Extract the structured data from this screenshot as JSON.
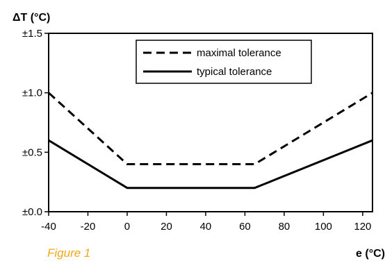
{
  "caption": "Figure 1",
  "colors": {
    "caption": "#f0a818",
    "line": "#000000",
    "background": "#ffffff"
  },
  "chart_data": {
    "type": "line",
    "title": "",
    "ylabel": "ΔT (°C)",
    "xlabel": "e (°C)",
    "xlim": [
      -40,
      125
    ],
    "ylim": [
      0,
      1.5
    ],
    "x_ticks": [
      -40,
      -20,
      0,
      20,
      40,
      60,
      80,
      100,
      120
    ],
    "y_ticks": [
      0,
      0.5,
      1.0,
      1.5
    ],
    "x_tick_labels": [
      "-40",
      "-20",
      "0",
      "20",
      "40",
      "60",
      "80",
      "100",
      "120"
    ],
    "y_tick_labels": [
      "±0.0",
      "±0.5",
      "±1.0",
      "±1.5"
    ],
    "grid": false,
    "legend_position": "top-center",
    "series": [
      {
        "name": "maximal tolerance",
        "style": "dashed",
        "x": [
          -40,
          0,
          65,
          125
        ],
        "y": [
          1.0,
          0.4,
          0.4,
          1.0
        ]
      },
      {
        "name": "typical tolerance",
        "style": "solid",
        "x": [
          -40,
          0,
          65,
          125
        ],
        "y": [
          0.6,
          0.2,
          0.2,
          0.6
        ]
      }
    ]
  }
}
